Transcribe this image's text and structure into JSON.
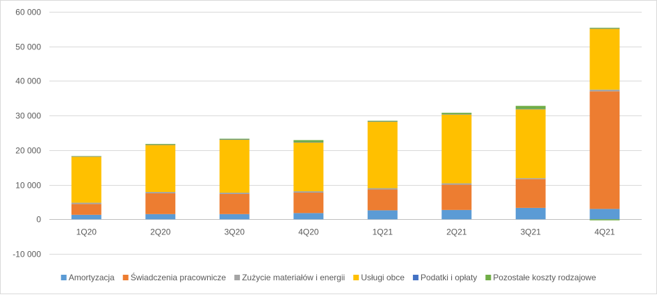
{
  "chart_data": {
    "type": "bar",
    "stacked": true,
    "categories": [
      "1Q20",
      "2Q20",
      "3Q20",
      "4Q20",
      "1Q21",
      "2Q21",
      "3Q21",
      "4Q21"
    ],
    "ylim": [
      -10000,
      60000
    ],
    "yticks": [
      -10000,
      0,
      10000,
      20000,
      30000,
      40000,
      50000,
      60000
    ],
    "ytick_labels": [
      "-10 000",
      "0",
      "10 000",
      "20 000",
      "30 000",
      "40 000",
      "50 000",
      "60 000"
    ],
    "grid": true,
    "legend_position": "bottom",
    "series": [
      {
        "name": "Amortyzacja",
        "color": "#5b9bd5",
        "values": [
          1300,
          1500,
          1500,
          1800,
          2600,
          2700,
          3300,
          3000
        ]
      },
      {
        "name": "Świadczenia pracownicze",
        "color": "#ed7d31",
        "values": [
          3100,
          6000,
          5800,
          5900,
          6000,
          7300,
          8300,
          34000
        ]
      },
      {
        "name": "Zużycie materiałów i energii",
        "color": "#a5a5a5",
        "values": [
          400,
          400,
          400,
          400,
          400,
          400,
          300,
          500
        ]
      },
      {
        "name": "Usługi obce",
        "color": "#ffc000",
        "values": [
          13300,
          13600,
          15300,
          14100,
          19200,
          19900,
          19900,
          17600
        ]
      },
      {
        "name": "Podatki i opłaty",
        "color": "#4472c4",
        "values": [
          100,
          100,
          100,
          100,
          100,
          100,
          100,
          100
        ]
      },
      {
        "name": "Pozostałe koszty rodzajowe",
        "color": "#70ad47",
        "values": [
          100,
          200,
          200,
          600,
          200,
          400,
          900,
          200
        ]
      }
    ],
    "negative_values": {
      "Pozostałe koszty rodzajowe": [
        0,
        0,
        0,
        0,
        0,
        0,
        0,
        -300
      ]
    }
  }
}
